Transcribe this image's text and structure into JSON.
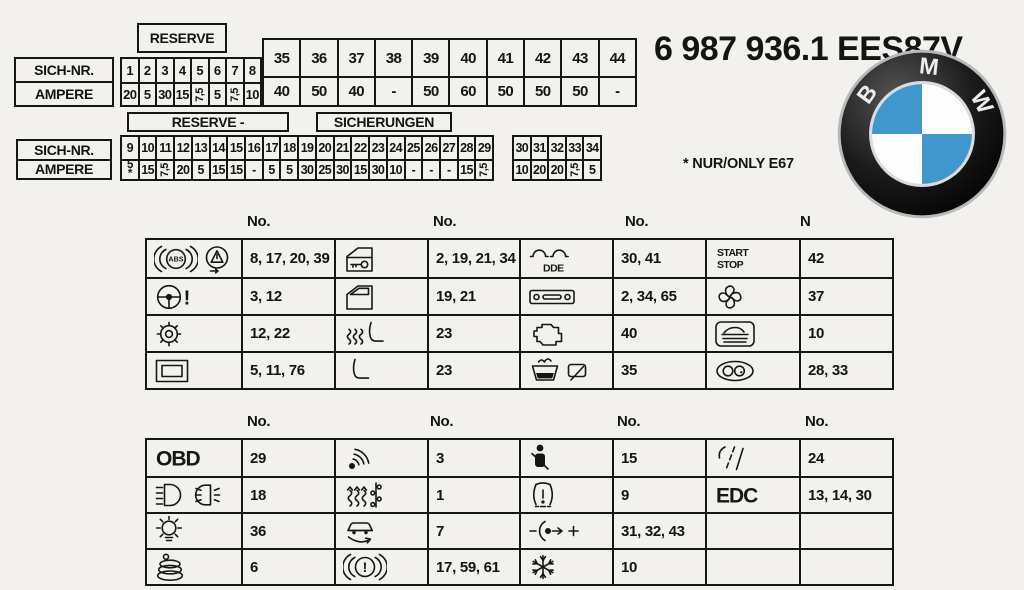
{
  "title": "6 987 936.1 EES87V",
  "note": {
    "star": "*",
    "text": "NUR/ONLY E67"
  },
  "logo": {
    "letters": [
      "B",
      "M",
      "W"
    ],
    "blue": "#3f97cb"
  },
  "icon_labels": {
    "abs": "ABS",
    "dde": "DDE",
    "start": "START",
    "stop": "STOP",
    "obd": "OBD",
    "edc": "EDC"
  },
  "fuse_panel_top": {
    "reserve_label": "RESERVE",
    "row_labels": [
      "SICH-NR.",
      "AMPERE"
    ],
    "small_fuses": [
      {
        "no": "1",
        "amp": "20"
      },
      {
        "no": "2",
        "amp": "5"
      },
      {
        "no": "3",
        "amp": "30"
      },
      {
        "no": "4",
        "amp": "15"
      },
      {
        "no": "5",
        "amp": "7,5",
        "rot": true
      },
      {
        "no": "6",
        "amp": "5"
      },
      {
        "no": "7",
        "amp": "7,5",
        "rot": true
      },
      {
        "no": "8",
        "amp": "10"
      }
    ],
    "large_fuses": [
      {
        "no": "35",
        "amp": "40"
      },
      {
        "no": "36",
        "amp": "50"
      },
      {
        "no": "37",
        "amp": "40"
      },
      {
        "no": "38",
        "amp": "-"
      },
      {
        "no": "39",
        "amp": "50"
      },
      {
        "no": "40",
        "amp": "60"
      },
      {
        "no": "41",
        "amp": "50"
      },
      {
        "no": "42",
        "amp": "50"
      },
      {
        "no": "43",
        "amp": "50"
      },
      {
        "no": "44",
        "amp": "-"
      }
    ]
  },
  "fuse_panel_mid": {
    "reserve_label": "RESERVE -",
    "sicherungen_label": "SICHERUNGEN",
    "row_labels": [
      "SICH-NR.",
      "AMPERE"
    ],
    "fuses": [
      {
        "no": "9",
        "amp": "5",
        "star": true
      },
      {
        "no": "10",
        "amp": "15"
      },
      {
        "no": "11",
        "amp": "7,5",
        "rot": true
      },
      {
        "no": "12",
        "amp": "20"
      },
      {
        "no": "13",
        "amp": "5"
      },
      {
        "no": "14",
        "amp": "15"
      },
      {
        "no": "15",
        "amp": "15"
      },
      {
        "no": "16",
        "amp": "-"
      },
      {
        "no": "17",
        "amp": "5"
      },
      {
        "no": "18",
        "amp": "5"
      },
      {
        "no": "19",
        "amp": "30"
      },
      {
        "no": "20",
        "amp": "25"
      },
      {
        "no": "21",
        "amp": "30"
      },
      {
        "no": "22",
        "amp": "15"
      },
      {
        "no": "23",
        "amp": "30"
      },
      {
        "no": "24",
        "amp": "10"
      },
      {
        "no": "25",
        "amp": "-"
      },
      {
        "no": "26",
        "amp": "-"
      },
      {
        "no": "27",
        "amp": "-"
      },
      {
        "no": "28",
        "amp": "15"
      },
      {
        "no": "29",
        "amp": "7,5",
        "rot": true
      }
    ],
    "fuses_right": [
      {
        "no": "30",
        "amp": "10"
      },
      {
        "no": "31",
        "amp": "20"
      },
      {
        "no": "32",
        "amp": "20"
      },
      {
        "no": "33",
        "amp": "7,5",
        "rot": true
      },
      {
        "no": "34",
        "amp": "5"
      }
    ]
  },
  "icon_table_upper": {
    "headers": [
      "No.",
      "No.",
      "No.",
      "N"
    ],
    "rows": [
      [
        {
          "icons": [
            "abs",
            "stability"
          ],
          "no": "8, 17, 20, 39"
        },
        {
          "icons": [
            "door-key"
          ],
          "no": "2, 19, 21, 34"
        },
        {
          "icons": [
            "glow-plug"
          ],
          "no": "30, 41"
        },
        {
          "icons": [
            "start-stop"
          ],
          "no": "42"
        }
      ],
      [
        {
          "icons": [
            "steering"
          ],
          "no": "3, 12"
        },
        {
          "icons": [
            "door"
          ],
          "no": "19, 21"
        },
        {
          "icons": [
            "radio"
          ],
          "no": "2, 34, 65"
        },
        {
          "icons": [
            "fan"
          ],
          "no": "37"
        }
      ],
      [
        {
          "icons": [
            "gear"
          ],
          "no": "12, 22"
        },
        {
          "icons": [
            "seat-heat"
          ],
          "no": "23"
        },
        {
          "icons": [
            "engine"
          ],
          "no": "40"
        },
        {
          "icons": [
            "convertible"
          ],
          "no": "10"
        }
      ],
      [
        {
          "icons": [
            "sunroof"
          ],
          "no": "5, 11, 76"
        },
        {
          "icons": [
            "seat"
          ],
          "no": "23"
        },
        {
          "icons": [
            "washer",
            "wiper"
          ],
          "no": "35"
        },
        {
          "icons": [
            "cluster"
          ],
          "no": "28, 33"
        }
      ]
    ]
  },
  "icon_table_lower": {
    "headers": [
      "No.",
      "No.",
      "No.",
      "No."
    ],
    "rows": [
      [
        {
          "icons": [
            "obd"
          ],
          "no": "29"
        },
        {
          "icons": [
            "signal"
          ],
          "no": "3"
        },
        {
          "icons": [
            "belt"
          ],
          "no": "15"
        },
        {
          "icons": [
            "lane"
          ],
          "no": "24"
        }
      ],
      [
        {
          "icons": [
            "beam",
            "fog"
          ],
          "no": "18"
        },
        {
          "icons": [
            "aux-heat"
          ],
          "no": "1"
        },
        {
          "icons": [
            "tire"
          ],
          "no": "9"
        },
        {
          "icons": [
            "edc"
          ],
          "no": "13, 14, 30"
        }
      ],
      [
        {
          "icons": [
            "bulb"
          ],
          "no": "36"
        },
        {
          "icons": [
            "susp"
          ],
          "no": "7"
        },
        {
          "icons": [
            "socket"
          ],
          "no": "31, 32, 43"
        },
        {
          "icons": [],
          "no": ""
        }
      ],
      [
        {
          "icons": [
            "horn"
          ],
          "no": "6"
        },
        {
          "icons": [
            "brake-warn"
          ],
          "no": "17, 59, 61"
        },
        {
          "icons": [
            "snow"
          ],
          "no": "10"
        },
        {
          "icons": [],
          "no": ""
        }
      ]
    ]
  }
}
